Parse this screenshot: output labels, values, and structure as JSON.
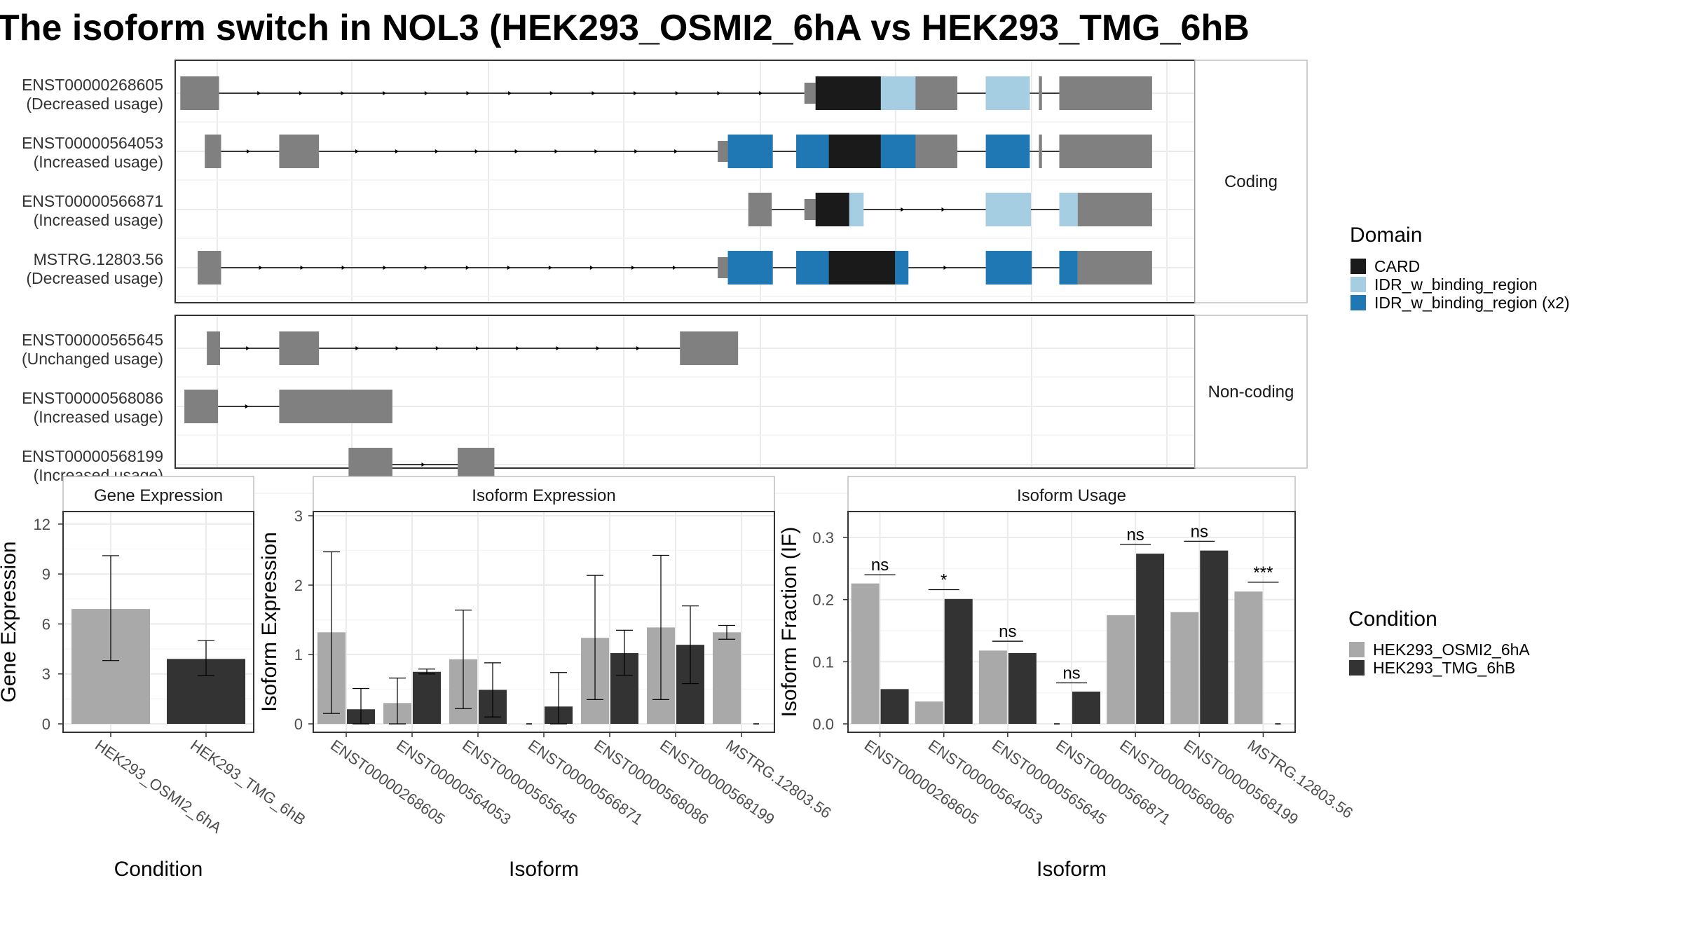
{
  "title": "The isoform switch in NOL3 (HEK293_OSMI2_6hA vs HEK293_TMG_6hB",
  "colors": {
    "exon": "#808080",
    "card": "#1a1a1a",
    "idr": "#a6cee3",
    "idr_x2": "#1f78b4",
    "cond_a": "#a9a9a9",
    "cond_b": "#333333"
  },
  "structure": {
    "x_range": [
      0,
      1000
    ],
    "groups": [
      {
        "name": "Coding",
        "isoforms": [
          {
            "id": "ENST00000268605",
            "status": "(Decreased usage)",
            "exons": [
              [
                5,
                43
              ],
              [
                617,
                628,
                "utr"
              ],
              [
                628,
                767
              ],
              [
                795,
                838
              ],
              [
                847,
                850
              ],
              [
                867,
                958
              ]
            ],
            "domains": [
              [
                628,
                692,
                "CARD"
              ],
              [
                692,
                726,
                "IDR_w_binding_region"
              ],
              [
                795,
                838,
                "IDR_w_binding_region"
              ]
            ]
          },
          {
            "id": "ENST00000564053",
            "status": "(Increased usage)",
            "exons": [
              [
                29,
                45
              ],
              [
                102,
                141
              ],
              [
                532,
                542,
                "utr"
              ],
              [
                542,
                586
              ],
              [
                609,
                767
              ],
              [
                795,
                838
              ],
              [
                847,
                850
              ],
              [
                867,
                958
              ]
            ],
            "domains": [
              [
                542,
                586,
                "IDR_w_binding_region (x2)"
              ],
              [
                609,
                641,
                "IDR_w_binding_region (x2)"
              ],
              [
                641,
                692,
                "CARD"
              ],
              [
                692,
                726,
                "IDR_w_binding_region (x2)"
              ],
              [
                795,
                838,
                "IDR_w_binding_region (x2)"
              ]
            ]
          },
          {
            "id": "ENST00000566871",
            "status": "(Increased usage)",
            "exons": [
              [
                562,
                585
              ],
              [
                617,
                628,
                "utr"
              ],
              [
                628,
                675
              ],
              [
                795,
                839
              ],
              [
                867,
                885
              ],
              [
                885,
                958
              ]
            ],
            "domains": [
              [
                628,
                661,
                "CARD"
              ],
              [
                661,
                675,
                "IDR_w_binding_region"
              ],
              [
                795,
                839,
                "IDR_w_binding_region"
              ],
              [
                867,
                885,
                "IDR_w_binding_region"
              ]
            ]
          },
          {
            "id": "MSTRG.12803.56",
            "status": "(Decreased usage)",
            "exons": [
              [
                22,
                45
              ],
              [
                532,
                542,
                "utr"
              ],
              [
                542,
                586
              ],
              [
                609,
                719
              ],
              [
                795,
                840
              ],
              [
                867,
                885
              ],
              [
                885,
                958
              ]
            ],
            "domains": [
              [
                542,
                586,
                "IDR_w_binding_region (x2)"
              ],
              [
                609,
                641,
                "IDR_w_binding_region (x2)"
              ],
              [
                641,
                706,
                "CARD"
              ],
              [
                706,
                719,
                "IDR_w_binding_region (x2)"
              ],
              [
                795,
                840,
                "IDR_w_binding_region (x2)"
              ],
              [
                867,
                885,
                "IDR_w_binding_region (x2)"
              ]
            ]
          }
        ]
      },
      {
        "name": "Non-coding",
        "isoforms": [
          {
            "id": "ENST00000565645",
            "status": "(Unchanged usage)",
            "exons": [
              [
                31,
                44
              ],
              [
                102,
                141
              ],
              [
                495,
                552
              ]
            ],
            "domains": []
          },
          {
            "id": "ENST00000568086",
            "status": "(Increased usage)",
            "exons": [
              [
                9,
                42
              ],
              [
                102,
                213
              ]
            ],
            "domains": []
          },
          {
            "id": "ENST00000568199",
            "status": "(Increased usage)",
            "exons": [
              [
                170,
                213
              ],
              [
                277,
                313
              ]
            ],
            "domains": []
          }
        ]
      }
    ]
  },
  "domain_legend": {
    "title": "Domain",
    "items": [
      {
        "label": "CARD",
        "color": "#1a1a1a"
      },
      {
        "label": "IDR_w_binding_region",
        "color": "#a6cee3"
      },
      {
        "label": "IDR_w_binding_region (x2)",
        "color": "#1f78b4"
      }
    ]
  },
  "condition_legend": {
    "title": "Condition",
    "items": [
      {
        "label": "HEK293_OSMI2_6hA",
        "color": "#a9a9a9"
      },
      {
        "label": "HEK293_TMG_6hB",
        "color": "#333333"
      }
    ]
  },
  "chart_data": [
    {
      "type": "bar",
      "title": "Gene Expression",
      "xlabel": "Condition",
      "ylabel": "Gene Expression",
      "ylim": [
        0,
        12.5
      ],
      "yticks": [
        0,
        3,
        6,
        9,
        12
      ],
      "categories": [
        "HEK293_OSMI2_6hA",
        "HEK293_TMG_6hB"
      ],
      "values": [
        6.9,
        3.9
      ],
      "error_low": [
        3.8,
        2.9
      ],
      "error_high": [
        10.1,
        5.0
      ]
    },
    {
      "type": "bar",
      "title": "Isoform Expression",
      "xlabel": "Isoform",
      "ylabel": "Isoform Expression",
      "ylim": [
        0,
        3.0
      ],
      "yticks": [
        0,
        1,
        2,
        3
      ],
      "categories": [
        "ENST00000268605",
        "ENST00000564053",
        "ENST00000565645",
        "ENST00000566871",
        "ENST00000568086",
        "ENST00000568199",
        "MSTRG.12803.56"
      ],
      "series": [
        {
          "name": "HEK293_OSMI2_6hA",
          "values": [
            1.32,
            0.3,
            0.93,
            0.0,
            1.24,
            1.39,
            1.32
          ],
          "error_low": [
            0.15,
            0.0,
            0.22,
            null,
            0.35,
            0.35,
            1.22
          ],
          "error_high": [
            2.48,
            0.66,
            1.64,
            null,
            2.14,
            2.43,
            1.42
          ]
        },
        {
          "name": "HEK293_TMG_6hB",
          "values": [
            0.21,
            0.75,
            0.49,
            0.25,
            1.02,
            1.14,
            0.0
          ],
          "error_low": [
            0.0,
            0.72,
            0.1,
            0.0,
            0.7,
            0.58,
            null
          ],
          "error_high": [
            0.51,
            0.79,
            0.88,
            0.74,
            1.35,
            1.7,
            null
          ]
        }
      ]
    },
    {
      "type": "bar",
      "title": "Isoform Usage",
      "xlabel": "Isoform",
      "ylabel": "Isoform Fraction (IF)",
      "ylim": [
        0,
        0.335
      ],
      "yticks": [
        0.0,
        0.1,
        0.2,
        0.3
      ],
      "ytick_labels": [
        "0.0",
        "0.1",
        "0.2",
        "0.3"
      ],
      "categories": [
        "ENST00000268605",
        "ENST00000564053",
        "ENST00000565645",
        "ENST00000566871",
        "ENST00000568086",
        "ENST00000568199",
        "MSTRG.12803.56"
      ],
      "series": [
        {
          "name": "HEK293_OSMI2_6hA",
          "values": [
            0.226,
            0.036,
            0.118,
            0.0,
            0.175,
            0.18,
            0.213
          ]
        },
        {
          "name": "HEK293_TMG_6hB",
          "values": [
            0.056,
            0.201,
            0.114,
            0.052,
            0.274,
            0.279,
            0.0
          ]
        }
      ],
      "significance": [
        {
          "category": 0,
          "label": "ns",
          "y": 0.24
        },
        {
          "category": 1,
          "label": "*",
          "y": 0.216
        },
        {
          "category": 2,
          "label": "ns",
          "y": 0.133
        },
        {
          "category": 3,
          "label": "ns",
          "y": 0.066
        },
        {
          "category": 4,
          "label": "ns",
          "y": 0.289
        },
        {
          "category": 5,
          "label": "ns",
          "y": 0.294
        },
        {
          "category": 6,
          "label": "***",
          "y": 0.228
        }
      ]
    }
  ]
}
